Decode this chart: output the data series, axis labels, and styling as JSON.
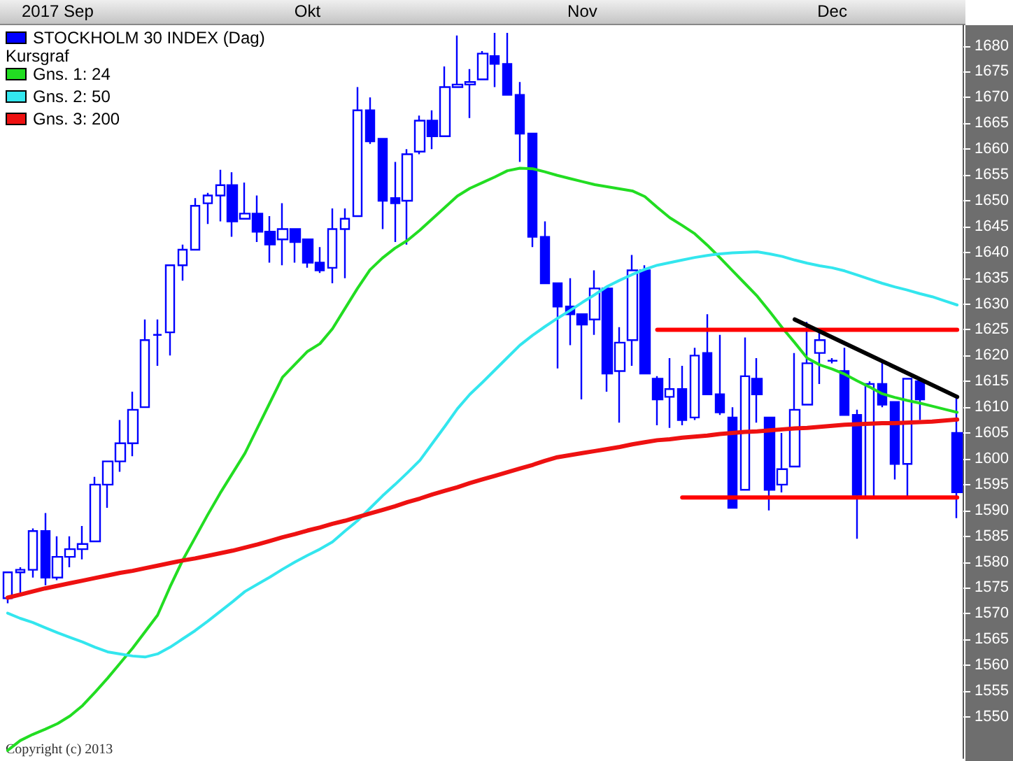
{
  "chart_data": {
    "type": "candlestick",
    "legend": "top left",
    "legend_title": "Kursgraf",
    "marker": "none",
    "annotations": [
      "Copyright (c) 2013"
    ],
    "categories": [
      null,
      null,
      null,
      null,
      "2017 Sep",
      null,
      null,
      null,
      null,
      null,
      null,
      null,
      null,
      null,
      null,
      null,
      null,
      null,
      null,
      null,
      null,
      null,
      null,
      null,
      "Okt",
      null,
      null,
      null,
      null,
      null,
      null,
      null,
      null,
      null,
      null,
      null,
      null,
      null,
      null,
      null,
      null,
      null,
      null,
      null,
      null,
      null,
      "Nov",
      null,
      null,
      null,
      null,
      null,
      null,
      null,
      null,
      null,
      null,
      null,
      null,
      null,
      null,
      null,
      null,
      null,
      null,
      null,
      "Dec",
      null,
      null,
      null,
      null,
      null,
      null,
      null,
      null,
      null,
      null
    ],
    "ylim": [
      1542,
      1684
    ],
    "yticks": [
      1550,
      1555,
      1560,
      1565,
      1570,
      1575,
      1580,
      1585,
      1590,
      1595,
      1600,
      1605,
      1610,
      1615,
      1620,
      1625,
      1630,
      1635,
      1640,
      1645,
      1650,
      1655,
      1660,
      1665,
      1670,
      1675,
      1680
    ],
    "series": [
      {
        "name": "STOCKHOLM 30 INDEX (Dag)",
        "color": "#0000ff",
        "ohlc": [
          [
            1573,
            1578,
            1572,
            1578
          ],
          [
            1578,
            1579,
            1574,
            1578.5
          ],
          [
            1578.5,
            1586.5,
            1577,
            1586
          ],
          [
            1586,
            1589.5,
            1575.5,
            1577
          ],
          [
            1577,
            1585,
            1576.5,
            1581
          ],
          [
            1581,
            1585,
            1579,
            1582.5
          ],
          [
            1582.5,
            1587,
            1580.5,
            1583.5
          ],
          [
            1584,
            1596.5,
            1584,
            1595
          ],
          [
            1595,
            1599.5,
            1590.5,
            1599.5
          ],
          [
            1599.5,
            1607.5,
            1597.5,
            1603
          ],
          [
            1603,
            1613,
            1600.5,
            1609.5
          ],
          [
            1610,
            1627,
            1610,
            1623
          ],
          [
            1624,
            1627,
            1618,
            1624
          ],
          [
            1624.5,
            1637.5,
            1620,
            1637.5
          ],
          [
            1637.5,
            1641.5,
            1634.5,
            1640.5
          ],
          [
            1640.5,
            1650.5,
            1640.5,
            1649
          ],
          [
            1649.5,
            1651.5,
            1645.5,
            1651
          ],
          [
            1651,
            1656,
            1646,
            1653
          ],
          [
            1653,
            1655.5,
            1643,
            1646
          ],
          [
            1646.5,
            1653.5,
            1646.5,
            1647.5
          ],
          [
            1647.5,
            1651,
            1642,
            1644
          ],
          [
            1644,
            1647,
            1638,
            1641.5
          ],
          [
            1642.5,
            1649.5,
            1637.5,
            1644.5
          ],
          [
            1644.5,
            1644.5,
            1638,
            1642
          ],
          [
            1642.5,
            1642.5,
            1637,
            1638
          ],
          [
            1638,
            1641,
            1636,
            1636.5
          ],
          [
            1637,
            1648.5,
            1634,
            1644.5
          ],
          [
            1644.5,
            1648.5,
            1635,
            1646.5
          ],
          [
            1647,
            1672,
            1647,
            1667.5
          ],
          [
            1667.5,
            1670,
            1661,
            1661.5
          ],
          [
            1662,
            1662,
            1644.5,
            1650
          ],
          [
            1650.5,
            1657.5,
            1642,
            1649.5
          ],
          [
            1650,
            1660,
            1641.5,
            1659
          ],
          [
            1659.5,
            1666.5,
            1659,
            1665.5
          ],
          [
            1665.5,
            1667.5,
            1660,
            1662.5
          ],
          [
            1662.5,
            1676,
            1662.5,
            1672
          ],
          [
            1672,
            1682,
            1672,
            1672.5
          ],
          [
            1672.5,
            1675.5,
            1666,
            1673
          ],
          [
            1673.5,
            1679,
            1673.5,
            1678.5
          ],
          [
            1678,
            1682.5,
            1672,
            1676.5
          ],
          [
            1676.5,
            1682.5,
            1670.5,
            1670.5
          ],
          [
            1670.5,
            1673,
            1657.5,
            1663
          ],
          [
            1663,
            1663,
            1641,
            1643
          ],
          [
            1643,
            1646,
            1634,
            1634
          ],
          [
            1634,
            1634,
            1617.5,
            1629.5
          ],
          [
            1629.5,
            1635,
            1622,
            1628
          ],
          [
            1628,
            1628,
            1611.5,
            1626
          ],
          [
            1627,
            1636.5,
            1624,
            1633
          ],
          [
            1633,
            1633,
            1613,
            1616.5
          ],
          [
            1617,
            1625.5,
            1607,
            1622.5
          ],
          [
            1623,
            1639.5,
            1618,
            1636.5
          ],
          [
            1636.5,
            1637.5,
            1616.5,
            1616.5
          ],
          [
            1615.5,
            1616,
            1606.5,
            1611.5
          ],
          [
            1612,
            1619.5,
            1606,
            1613.5
          ],
          [
            1613.5,
            1618,
            1606.5,
            1607.5
          ],
          [
            1608,
            1621.5,
            1607.5,
            1620
          ],
          [
            1620.5,
            1628,
            1612.5,
            1612.5
          ],
          [
            1612.5,
            1624,
            1608.5,
            1609
          ],
          [
            1608,
            1610,
            1590.5,
            1590.5
          ],
          [
            1594,
            1623.5,
            1594,
            1616
          ],
          [
            1615.5,
            1619.5,
            1607,
            1612.5
          ],
          [
            1608,
            1608,
            1590,
            1594
          ],
          [
            1595,
            1605,
            1593.5,
            1598
          ],
          [
            1598.5,
            1620.5,
            1598.5,
            1609.5
          ],
          [
            1610.5,
            1626.5,
            1610.5,
            1618.5
          ],
          [
            1620.5,
            1624.5,
            1614.5,
            1623
          ],
          [
            1619,
            1619.5,
            1618.5,
            1619
          ],
          [
            1617,
            1621.5,
            1608.5,
            1608.5
          ],
          [
            1608.5,
            1609.5,
            1584.5,
            1593
          ],
          [
            1592.5,
            1615,
            1592.5,
            1614.5
          ],
          [
            1614.5,
            1619,
            1610,
            1610.5
          ],
          [
            1611,
            1611,
            1596,
            1599
          ],
          [
            1599,
            1615.5,
            1592.5,
            1615.5
          ],
          [
            1615,
            1615,
            1607.5,
            1611.5
          ],
          null,
          null,
          [
            1605,
            1612,
            1588.5,
            1593.5
          ]
        ]
      },
      {
        "type": "line",
        "name": "Gns. 1: 24",
        "color": "#22dd22",
        "values": [
          1543.5,
          1545.4,
          1546.6,
          1547.6,
          1548.7,
          1550.2,
          1552.2,
          1554.8,
          1557.5,
          1560.4,
          1563.3,
          1566.5,
          1569.7,
          1575.2,
          1580.3,
          1584.7,
          1589.1,
          1593.3,
          1597.2,
          1601.1,
          1606,
          1610.9,
          1615.8,
          1618.3,
          1620.8,
          1622.3,
          1625.2,
          1629.1,
          1633,
          1636.6,
          1638.9,
          1640.8,
          1642.3,
          1644.3,
          1646.5,
          1648.7,
          1650.9,
          1652.4,
          1653.5,
          1654.6,
          1655.8,
          1656.3,
          1656.2,
          1655.6,
          1654.9,
          1654.3,
          1653.7,
          1653.1,
          1652.7,
          1652.3,
          1651.9,
          1650.8,
          1648.7,
          1646.7,
          1645.2,
          1643.6,
          1641.4,
          1639,
          1636.5,
          1634,
          1631.5,
          1628.5,
          1625.4,
          1622.5,
          1619.5,
          1618.2,
          1617.4,
          1616.4,
          1615.1,
          1613.9,
          1612.6,
          1611.9,
          1611.3,
          1610.8,
          1610.2,
          1609.6,
          1609
        ]
      },
      {
        "type": "line",
        "name": "Gns. 2: 50",
        "color": "#33e6ee",
        "values": [
          1570.1,
          1569.1,
          1568.3,
          1567.3,
          1566.3,
          1565.4,
          1564.5,
          1563.5,
          1562.6,
          1562.2,
          1561.8,
          1561.6,
          1562.2,
          1563.5,
          1565.1,
          1566.7,
          1568.5,
          1570.4,
          1572.3,
          1574.3,
          1575.7,
          1577.1,
          1578.6,
          1580,
          1581.3,
          1582.5,
          1583.9,
          1586,
          1588,
          1590.4,
          1592.8,
          1595,
          1597.3,
          1599.7,
          1603,
          1606.3,
          1609.7,
          1612.5,
          1614.8,
          1617.2,
          1619.6,
          1622,
          1623.9,
          1625.6,
          1627.2,
          1628.7,
          1630.3,
          1631.8,
          1633.4,
          1634.6,
          1635.7,
          1636.7,
          1637.5,
          1638,
          1638.5,
          1639,
          1639.4,
          1639.7,
          1639.9,
          1640,
          1640.1,
          1639.7,
          1639.2,
          1638.5,
          1637.9,
          1637.4,
          1637,
          1636.4,
          1635.6,
          1634.8,
          1634,
          1633.3,
          1632.7,
          1632,
          1631.4,
          1630.6,
          1629.8
        ]
      },
      {
        "type": "line",
        "name": "Gns. 3: 200",
        "color": "#ee1111",
        "values": [
          1573.1,
          1573.7,
          1574.3,
          1574.9,
          1575.4,
          1575.9,
          1576.4,
          1576.9,
          1577.4,
          1577.9,
          1578.3,
          1578.8,
          1579.3,
          1579.8,
          1580.3,
          1580.7,
          1581.2,
          1581.7,
          1582.2,
          1582.8,
          1583.4,
          1584.1,
          1584.8,
          1585.4,
          1586.1,
          1586.7,
          1587.4,
          1588,
          1588.7,
          1589.4,
          1590.1,
          1590.8,
          1591.6,
          1592.3,
          1593.1,
          1593.8,
          1594.5,
          1595.3,
          1596,
          1596.7,
          1597.4,
          1598.1,
          1598.8,
          1599.6,
          1600.3,
          1600.7,
          1601.1,
          1601.5,
          1601.9,
          1602.3,
          1602.8,
          1603.2,
          1603.6,
          1603.8,
          1604.1,
          1604.3,
          1604.5,
          1604.8,
          1605,
          1605.2,
          1605.3,
          1605.5,
          1605.7,
          1605.9,
          1606,
          1606.2,
          1606.4,
          1606.6,
          1606.7,
          1606.8,
          1606.9,
          1606.9,
          1607,
          1607.1,
          1607.2,
          1607.4,
          1607.6
        ]
      },
      {
        "type": "line",
        "color": "#ff0000",
        "values": [
          null,
          null,
          null,
          null,
          null,
          null,
          null,
          null,
          null,
          null,
          null,
          null,
          null,
          null,
          null,
          null,
          null,
          null,
          null,
          null,
          null,
          null,
          null,
          null,
          null,
          null,
          null,
          null,
          null,
          null,
          null,
          null,
          null,
          null,
          null,
          null,
          null,
          null,
          null,
          null,
          null,
          null,
          null,
          null,
          null,
          null,
          null,
          null,
          null,
          null,
          null,
          null,
          1625,
          null,
          null,
          null,
          null,
          null,
          null,
          null,
          null,
          null,
          null,
          null,
          null,
          null,
          null,
          null,
          null,
          null,
          null,
          null,
          null,
          null,
          null,
          null,
          1625
        ]
      },
      {
        "type": "line",
        "color": "#ff0000",
        "values": [
          null,
          null,
          null,
          null,
          null,
          null,
          null,
          null,
          null,
          null,
          null,
          null,
          null,
          null,
          null,
          null,
          null,
          null,
          null,
          null,
          null,
          null,
          null,
          null,
          null,
          null,
          null,
          null,
          null,
          null,
          null,
          null,
          null,
          null,
          null,
          null,
          null,
          null,
          null,
          null,
          null,
          null,
          null,
          null,
          null,
          null,
          null,
          null,
          null,
          null,
          null,
          null,
          null,
          null,
          1592.5,
          null,
          null,
          null,
          null,
          null,
          null,
          null,
          null,
          null,
          null,
          null,
          null,
          null,
          null,
          null,
          null,
          null,
          null,
          null,
          null,
          null,
          1592.5
        ]
      },
      {
        "type": "line",
        "color": "#000000",
        "values": [
          null,
          null,
          null,
          null,
          null,
          null,
          null,
          null,
          null,
          null,
          null,
          null,
          null,
          null,
          null,
          null,
          null,
          null,
          null,
          null,
          null,
          null,
          null,
          null,
          null,
          null,
          null,
          null,
          null,
          null,
          null,
          null,
          null,
          null,
          null,
          null,
          null,
          null,
          null,
          null,
          null,
          null,
          null,
          null,
          null,
          null,
          null,
          null,
          null,
          null,
          null,
          null,
          null,
          null,
          null,
          null,
          null,
          null,
          null,
          null,
          null,
          null,
          null,
          1627,
          null,
          null,
          null,
          null,
          null,
          null,
          null,
          null,
          null,
          null,
          null,
          null,
          1612
        ]
      }
    ]
  }
}
